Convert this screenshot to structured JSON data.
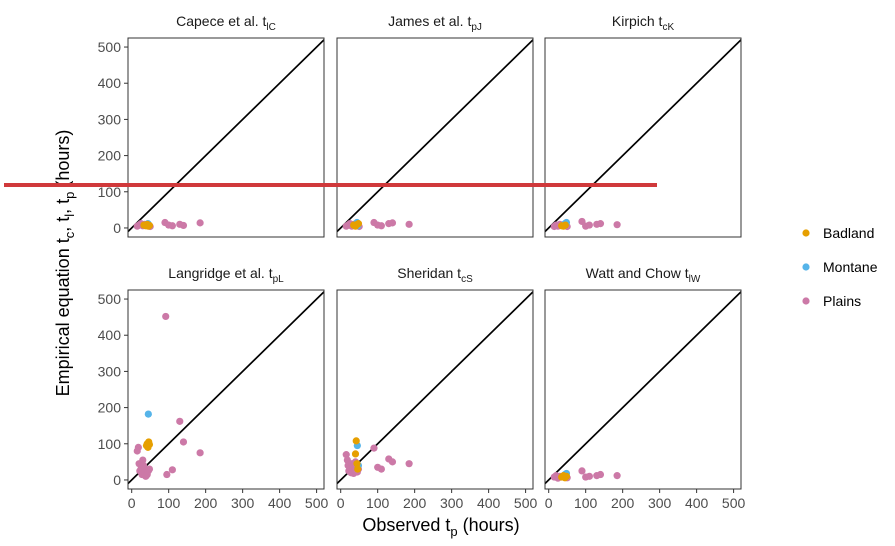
{
  "chart_data": {
    "type": "scatter",
    "xlabel": {
      "base": "Observed t",
      "sub": "p",
      "after": " (hours)"
    },
    "ylabel": {
      "parts": [
        {
          "t": "Empirical equation t"
        },
        {
          "t": "c",
          "sub": true
        },
        {
          "t": ", t"
        },
        {
          "t": "l",
          "sub": true
        },
        {
          "t": ", t"
        },
        {
          "t": "p",
          "sub": true
        },
        {
          "t": " (hours)"
        }
      ]
    },
    "xlim": [
      -10,
      520
    ],
    "ylim": [
      -25,
      525
    ],
    "ticks": [
      "0",
      "100",
      "200",
      "300",
      "400",
      "500"
    ],
    "tick_values": [
      0,
      100,
      200,
      300,
      400,
      500
    ],
    "reference_line": "1:1",
    "legend": {
      "position": "right",
      "entries": [
        {
          "label": "Badland",
          "color": "#E69F00"
        },
        {
          "label": "Montane",
          "color": "#56B4E9"
        },
        {
          "label": "Plains",
          "color": "#CC79A7"
        }
      ]
    },
    "panels": [
      {
        "title": "Capece et al. t",
        "sub": "lC",
        "points": {
          "Badland": [
            [
              33,
              8
            ],
            [
              38,
              6
            ],
            [
              42,
              10
            ],
            [
              45,
              5
            ],
            [
              48,
              7
            ]
          ],
          "Montane": [
            [
              44,
              12
            ],
            [
              46,
              8
            ]
          ],
          "Plains": [
            [
              15,
              5
            ],
            [
              20,
              8
            ],
            [
              25,
              12
            ],
            [
              30,
              6
            ],
            [
              35,
              10
            ],
            [
              40,
              9
            ],
            [
              50,
              4
            ],
            [
              90,
              15
            ],
            [
              100,
              8
            ],
            [
              110,
              6
            ],
            [
              130,
              10
            ],
            [
              140,
              7
            ],
            [
              185,
              14
            ]
          ]
        }
      },
      {
        "title": "James et al. t",
        "sub": "pJ",
        "points": {
          "Badland": [
            [
              35,
              8
            ],
            [
              40,
              5
            ],
            [
              45,
              10
            ],
            [
              48,
              12
            ]
          ],
          "Montane": [
            [
              44,
              15
            ],
            [
              46,
              6
            ]
          ],
          "Plains": [
            [
              15,
              5
            ],
            [
              20,
              8
            ],
            [
              25,
              12
            ],
            [
              30,
              5
            ],
            [
              35,
              10
            ],
            [
              50,
              4
            ],
            [
              90,
              15
            ],
            [
              100,
              8
            ],
            [
              110,
              6
            ],
            [
              130,
              12
            ],
            [
              140,
              14
            ],
            [
              185,
              10
            ]
          ]
        }
      },
      {
        "title": "Kirpich t",
        "sub": "cK",
        "points": {
          "Badland": [
            [
              35,
              6
            ],
            [
              40,
              5
            ],
            [
              45,
              8
            ]
          ],
          "Montane": [
            [
              44,
              12
            ],
            [
              48,
              15
            ]
          ],
          "Plains": [
            [
              15,
              4
            ],
            [
              20,
              8
            ],
            [
              25,
              5
            ],
            [
              30,
              10
            ],
            [
              50,
              4
            ],
            [
              90,
              18
            ],
            [
              100,
              5
            ],
            [
              110,
              8
            ],
            [
              130,
              10
            ],
            [
              140,
              12
            ],
            [
              185,
              9
            ]
          ]
        }
      },
      {
        "title": "Langridge et al. t",
        "sub": "pL",
        "points": {
          "Badland": [
            [
              40,
              95
            ],
            [
              42,
              100
            ],
            [
              44,
              90
            ],
            [
              46,
              105
            ],
            [
              48,
              98
            ]
          ],
          "Montane": [
            [
              45,
              182
            ]
          ],
          "Plains": [
            [
              15,
              80
            ],
            [
              18,
              90
            ],
            [
              20,
              45
            ],
            [
              22,
              25
            ],
            [
              25,
              30
            ],
            [
              28,
              15
            ],
            [
              30,
              55
            ],
            [
              32,
              40
            ],
            [
              35,
              20
            ],
            [
              38,
              10
            ],
            [
              40,
              28
            ],
            [
              42,
              15
            ],
            [
              45,
              25
            ],
            [
              48,
              30
            ],
            [
              92,
              452
            ],
            [
              95,
              15
            ],
            [
              110,
              28
            ],
            [
              130,
              162
            ],
            [
              140,
              105
            ],
            [
              185,
              75
            ]
          ]
        }
      },
      {
        "title": "Sheridan t",
        "sub": "cS",
        "points": {
          "Badland": [
            [
              40,
              72
            ],
            [
              42,
              108
            ],
            [
              44,
              45
            ],
            [
              46,
              30
            ]
          ],
          "Montane": [
            [
              45,
              95
            ],
            [
              48,
              40
            ]
          ],
          "Plains": [
            [
              15,
              70
            ],
            [
              18,
              55
            ],
            [
              20,
              40
            ],
            [
              22,
              25
            ],
            [
              25,
              30
            ],
            [
              28,
              20
            ],
            [
              30,
              45
            ],
            [
              32,
              35
            ],
            [
              35,
              18
            ],
            [
              38,
              28
            ],
            [
              40,
              50
            ],
            [
              42,
              38
            ],
            [
              45,
              22
            ],
            [
              48,
              30
            ],
            [
              90,
              88
            ],
            [
              100,
              35
            ],
            [
              110,
              30
            ],
            [
              130,
              58
            ],
            [
              140,
              50
            ],
            [
              185,
              45
            ]
          ]
        }
      },
      {
        "title": "Watt and Chow t",
        "sub": "lW",
        "points": {
          "Badland": [
            [
              35,
              8
            ],
            [
              40,
              12
            ],
            [
              44,
              6
            ],
            [
              48,
              10
            ]
          ],
          "Montane": [
            [
              44,
              15
            ],
            [
              48,
              18
            ]
          ],
          "Plains": [
            [
              15,
              8
            ],
            [
              20,
              12
            ],
            [
              25,
              5
            ],
            [
              30,
              10
            ],
            [
              50,
              6
            ],
            [
              90,
              25
            ],
            [
              100,
              8
            ],
            [
              110,
              10
            ],
            [
              130,
              12
            ],
            [
              140,
              15
            ],
            [
              185,
              12
            ]
          ]
        }
      }
    ]
  },
  "annotation": {
    "color": "#D0393B"
  }
}
